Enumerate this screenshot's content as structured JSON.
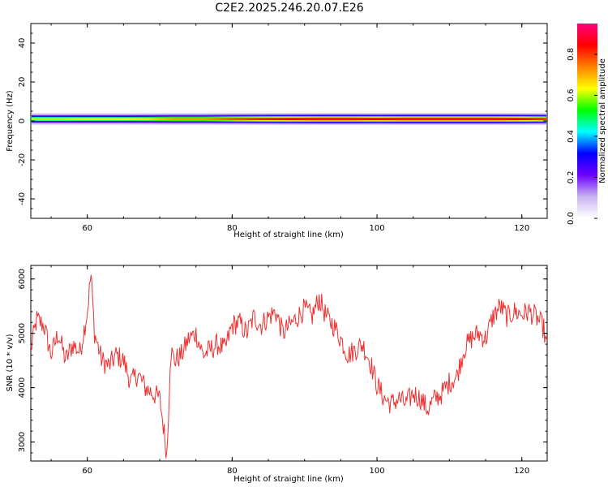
{
  "title": "C2E2.2025.246.20.07.E26",
  "chart_data": [
    {
      "type": "heatmap",
      "xlabel": "Height of straight line (km)",
      "ylabel": "Frequency (Hz)",
      "xlim": [
        52.2,
        123.5
      ],
      "ylim": [
        -50,
        50
      ],
      "xticks": [
        60,
        80,
        100,
        120
      ],
      "yticks": [
        -40,
        -20,
        0,
        20,
        40
      ],
      "band_center_hz": 1,
      "band_halfwidth_hz": 3,
      "colorbar": {
        "label": "Normalized spectral amplitude",
        "ticks": [
          0.0,
          0.2,
          0.4,
          0.6,
          0.8
        ],
        "range": [
          0,
          0.95
        ],
        "colors": [
          "#ffffff",
          "#c8b4f0",
          "#6e00ff",
          "#0000ff",
          "#00ffff",
          "#00ff00",
          "#ffff00",
          "#ff8000",
          "#ff0000",
          "#ff0080"
        ]
      },
      "intensity_profile": {
        "x": [
          52.2,
          56,
          60,
          64,
          68,
          72,
          76,
          80,
          84,
          88,
          92,
          96,
          100,
          104,
          108,
          112,
          116,
          120,
          123.5
        ],
        "peak": [
          0.6,
          0.6,
          0.62,
          0.62,
          0.66,
          0.72,
          0.72,
          0.78,
          0.82,
          0.86,
          0.9,
          0.9,
          0.86,
          0.9,
          0.9,
          0.9,
          0.9,
          0.86,
          0.8
        ]
      }
    },
    {
      "type": "line",
      "xlabel": "Height of straight line (km)",
      "ylabel": "SNR (10 * v/v)",
      "xlim": [
        52.2,
        123.5
      ],
      "ylim": [
        2650,
        6250
      ],
      "xticks": [
        60,
        80,
        100,
        120
      ],
      "yticks": [
        3000,
        4000,
        5000,
        6000
      ],
      "color": "#ee3030",
      "series": [
        {
          "x": [
            52.2,
            53,
            54,
            55,
            56,
            57,
            58,
            59,
            60,
            60.5,
            61,
            62,
            63,
            64,
            65,
            66,
            67,
            68,
            69,
            70,
            70.5,
            71,
            71.5,
            72,
            73,
            74,
            75,
            76,
            77,
            78,
            79,
            80,
            81,
            82,
            83,
            84,
            85,
            86,
            87,
            88,
            89,
            90,
            91,
            92,
            93,
            94,
            95,
            96,
            97,
            98,
            99,
            100,
            101,
            102,
            103,
            104,
            105,
            106,
            107,
            108,
            109,
            110,
            111,
            112,
            113,
            114,
            115,
            116,
            117,
            118,
            119,
            120,
            121,
            122,
            123,
            123.5
          ],
          "y": [
            4700,
            5250,
            5150,
            4600,
            5000,
            4500,
            4800,
            4650,
            5400,
            6100,
            5000,
            4500,
            4400,
            4600,
            4500,
            4100,
            4250,
            4000,
            3900,
            3800,
            3300,
            2750,
            4700,
            4500,
            4600,
            4900,
            5000,
            4600,
            4700,
            4800,
            4700,
            5150,
            5200,
            5000,
            5300,
            5150,
            5300,
            5400,
            5000,
            5150,
            5300,
            5450,
            5300,
            5650,
            5300,
            5150,
            4900,
            4600,
            4700,
            4800,
            4500,
            4050,
            3800,
            3700,
            3800,
            3700,
            3900,
            3800,
            3600,
            3800,
            3900,
            4100,
            4200,
            4700,
            4900,
            5000,
            4900,
            5300,
            5500,
            5300,
            5400,
            5350,
            5400,
            5300,
            5100,
            4700
          ]
        }
      ]
    }
  ]
}
